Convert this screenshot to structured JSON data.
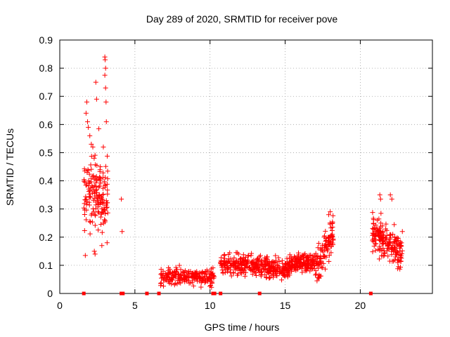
{
  "chart_data": {
    "type": "scatter",
    "title": "Day 289 of 2020, SRMTID for receiver pove",
    "xlabel": "GPS time / hours",
    "ylabel": "SRMTID / TECUs",
    "xlim": [
      0,
      24.8
    ],
    "ylim": [
      0,
      0.9
    ],
    "xticks": [
      0,
      5,
      10,
      15,
      20
    ],
    "yticks": [
      0,
      0.1,
      0.2,
      0.3,
      0.4,
      0.5,
      0.6,
      0.7,
      0.8,
      0.9
    ],
    "grid": true,
    "marker": "+",
    "color": "#ff0000",
    "segments": [
      {
        "x_start": 1.6,
        "x_end": 3.2,
        "y_center": 0.35,
        "y_spread": 0.1,
        "density": 160
      },
      {
        "x_start": 6.7,
        "x_end": 10.3,
        "y_center": 0.06,
        "y_spread": 0.025,
        "density": 220
      },
      {
        "x_start": 10.7,
        "x_end": 13.3,
        "y_center": 0.1,
        "y_spread": 0.03,
        "density": 200
      },
      {
        "x_start": 13.3,
        "x_end": 15.3,
        "y_center": 0.09,
        "y_spread": 0.03,
        "density": 180
      },
      {
        "x_start": 15.3,
        "x_end": 17.0,
        "y_center": 0.11,
        "y_spread": 0.025,
        "density": 160
      },
      {
        "x_start": 17.0,
        "x_end": 18.2,
        "y_center": 0.16,
        "y_spread": 0.06,
        "density": 110
      },
      {
        "x_start": 20.8,
        "x_end": 22.8,
        "y_center": 0.2,
        "y_spread": 0.05,
        "density": 190
      }
    ],
    "points": [
      [
        1.7,
        0.135
      ],
      [
        1.75,
        0.64
      ],
      [
        1.8,
        0.68
      ],
      [
        1.85,
        0.61
      ],
      [
        1.9,
        0.59
      ],
      [
        2.0,
        0.56
      ],
      [
        2.1,
        0.53
      ],
      [
        2.2,
        0.52
      ],
      [
        2.3,
        0.15
      ],
      [
        2.35,
        0.14
      ],
      [
        2.4,
        0.75
      ],
      [
        2.45,
        0.69
      ],
      [
        2.6,
        0.585
      ],
      [
        2.7,
        0.45
      ],
      [
        2.8,
        0.17
      ],
      [
        2.9,
        0.52
      ],
      [
        3.0,
        0.84
      ],
      [
        3.02,
        0.83
      ],
      [
        3.05,
        0.8
      ],
      [
        3.0,
        0.775
      ],
      [
        3.05,
        0.73
      ],
      [
        3.08,
        0.68
      ],
      [
        3.1,
        0.61
      ],
      [
        3.15,
        0.18
      ],
      [
        4.1,
        0.335
      ],
      [
        4.15,
        0.22
      ],
      [
        17.6,
        0.2
      ],
      [
        17.9,
        0.28
      ],
      [
        18.0,
        0.29
      ],
      [
        21.3,
        0.35
      ],
      [
        21.35,
        0.335
      ],
      [
        22.0,
        0.35
      ],
      [
        22.1,
        0.335
      ],
      [
        22.8,
        0.22
      ]
    ],
    "zero_points": [
      1.6,
      4.1,
      4.2,
      5.8,
      6.6,
      10.2,
      10.3,
      10.7,
      13.3,
      20.7
    ]
  }
}
